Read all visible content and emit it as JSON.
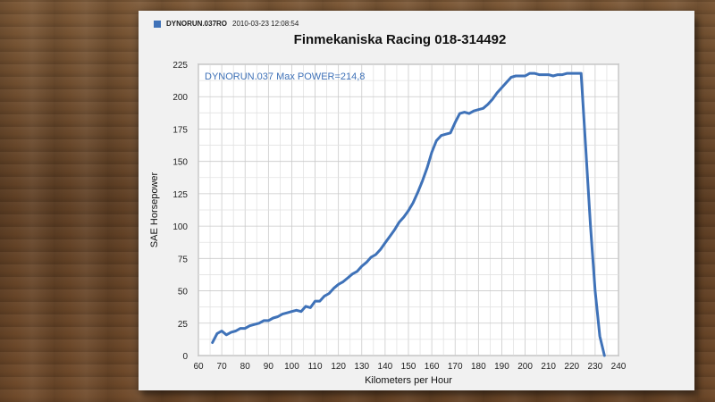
{
  "legend": {
    "series_name": "DYNORUN.037RO",
    "timestamp": "2010-03-23 12:08:54",
    "swatch_color": "#3f72b8"
  },
  "chart_data": {
    "type": "line",
    "title": "Finmekaniska Racing 018-314492",
    "annotation": "DYNORUN.037  Max POWER=214,8",
    "xlabel": "Kilometers per Hour",
    "ylabel": "SAE Horsepower",
    "xlim": [
      60,
      240
    ],
    "ylim": [
      0,
      225
    ],
    "x_ticks": [
      60,
      70,
      80,
      90,
      100,
      110,
      120,
      130,
      140,
      150,
      160,
      170,
      180,
      190,
      200,
      210,
      220,
      230,
      240
    ],
    "y_ticks": [
      0,
      25,
      50,
      75,
      100,
      125,
      150,
      175,
      200,
      225
    ],
    "grid": true,
    "series_color": "#3f72b8",
    "series": [
      {
        "name": "DYNORUN.037RO",
        "x": [
          66,
          68,
          70,
          72,
          74,
          76,
          78,
          80,
          82,
          84,
          86,
          88,
          90,
          92,
          94,
          96,
          98,
          100,
          102,
          104,
          106,
          108,
          110,
          112,
          114,
          116,
          118,
          120,
          122,
          124,
          126,
          128,
          130,
          132,
          134,
          136,
          138,
          140,
          142,
          144,
          146,
          148,
          150,
          152,
          154,
          156,
          158,
          160,
          162,
          164,
          166,
          168,
          170,
          172,
          174,
          176,
          178,
          180,
          182,
          184,
          186,
          188,
          190,
          192,
          194,
          196,
          198,
          200,
          202,
          204,
          206,
          208,
          210,
          212,
          214,
          216,
          218,
          220,
          222,
          224,
          226,
          228,
          230,
          232,
          234
        ],
        "y": [
          10,
          17,
          19,
          16,
          18,
          19,
          21,
          21,
          23,
          24,
          25,
          27,
          27,
          29,
          30,
          32,
          33,
          34,
          35,
          34,
          38,
          37,
          42,
          42,
          46,
          48,
          52,
          55,
          57,
          60,
          63,
          65,
          69,
          72,
          76,
          78,
          82,
          87,
          92,
          97,
          103,
          107,
          112,
          118,
          126,
          135,
          145,
          157,
          166,
          170,
          171,
          172,
          180,
          187,
          188,
          187,
          189,
          190,
          191,
          194,
          198,
          203,
          207,
          211,
          215,
          216,
          216,
          216,
          218,
          218,
          217,
          217,
          217,
          216,
          217,
          217,
          218,
          218,
          218,
          218,
          160,
          100,
          50,
          15,
          0
        ]
      }
    ]
  }
}
